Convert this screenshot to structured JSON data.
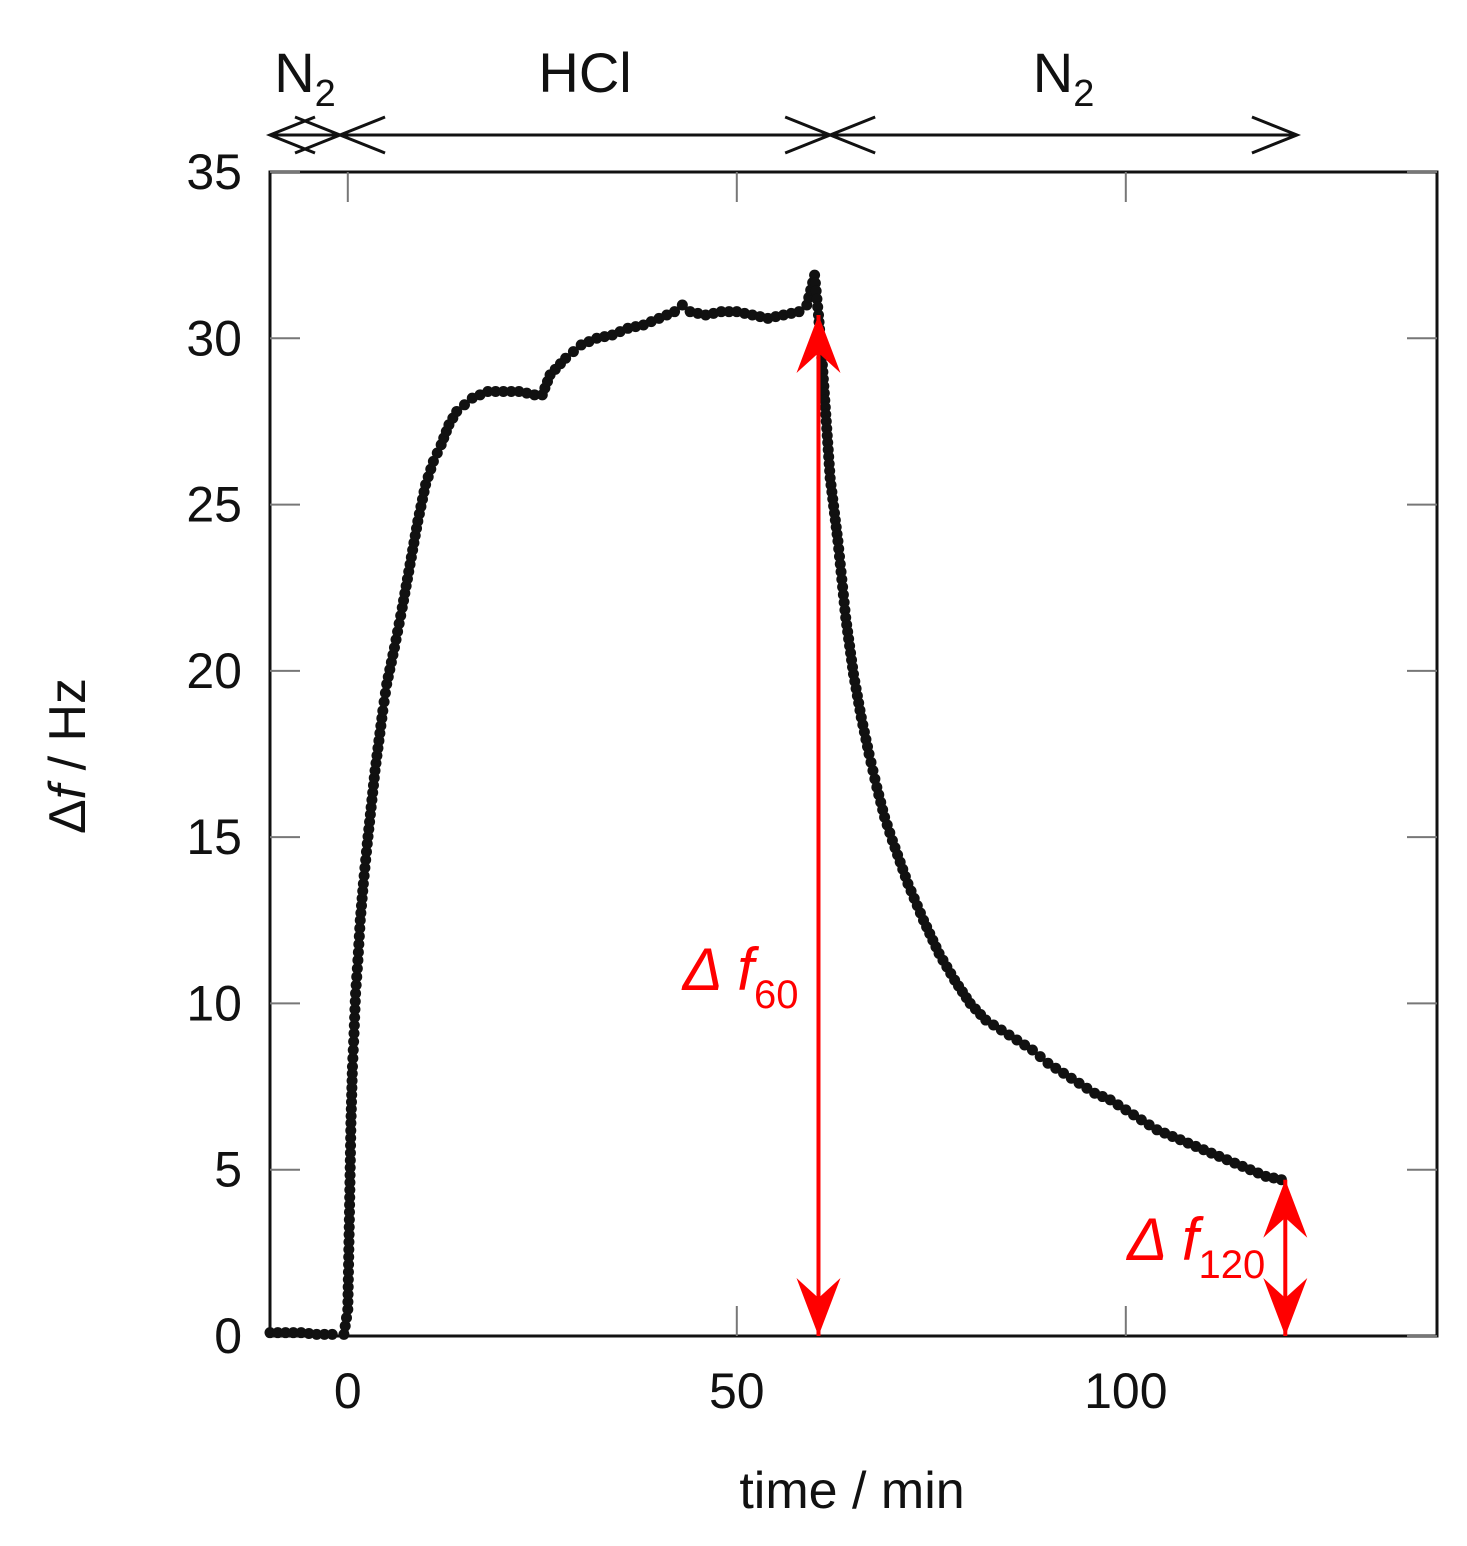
{
  "chart_data": {
    "type": "scatter",
    "title": "",
    "xlabel": "time / min",
    "ylabel_parts": {
      "delta": "Δ",
      "symbol": "f",
      "rest": " / Hz"
    },
    "xlim": [
      -10,
      140
    ],
    "ylim": [
      0,
      35
    ],
    "xticks": [
      0,
      50,
      100
    ],
    "yticks": [
      0,
      5,
      10,
      15,
      20,
      25,
      30,
      35
    ],
    "grid": false,
    "marker_color": "#111111",
    "annotation_color": "#ff0000",
    "phases": [
      {
        "label": "N",
        "sub": "2",
        "start": -10,
        "end": -1
      },
      {
        "label": "HCl",
        "sub": "",
        "start": -1,
        "end": 62
      },
      {
        "label": "N",
        "sub": "2",
        "start": 62,
        "end": 122
      }
    ],
    "annotations": [
      {
        "main": "Δ f",
        "sub": "60",
        "x": 60.5,
        "y_from": 0,
        "y_to": 30.7
      },
      {
        "main": "Δ f",
        "sub": "120",
        "x": 120.5,
        "y_from": 0,
        "y_to": 4.7
      }
    ],
    "series": [
      {
        "x": [
          -10,
          -8,
          -6,
          -4,
          -2,
          -0.5,
          0,
          0.2,
          0.4,
          0.6,
          0.8,
          1,
          1.3,
          1.6,
          2,
          2.5,
          3,
          3.5,
          4,
          4.5,
          5,
          6,
          7,
          8,
          9,
          10,
          11,
          12,
          13,
          14,
          15,
          16,
          18,
          20,
          22,
          24,
          25,
          26,
          28,
          30,
          32,
          34,
          36,
          38,
          40,
          42,
          43,
          44,
          46,
          48,
          50,
          52,
          54,
          56,
          58,
          59,
          60,
          60.5,
          61,
          61.5,
          62,
          63,
          64,
          65,
          66,
          67,
          68,
          69,
          70,
          72,
          74,
          76,
          78,
          80,
          82,
          84,
          86,
          88,
          90,
          92,
          94,
          96,
          98,
          100,
          102,
          104,
          106,
          108,
          110,
          112,
          114,
          116,
          118,
          120
        ],
        "y": [
          0.1,
          0.1,
          0.1,
          0.05,
          0.05,
          0.05,
          0.8,
          3.5,
          6.4,
          8.1,
          9.1,
          10.3,
          11.3,
          12.5,
          13.6,
          14.8,
          15.9,
          17.0,
          17.9,
          18.8,
          19.6,
          20.7,
          21.9,
          23.2,
          24.5,
          25.6,
          26.3,
          26.8,
          27.4,
          27.8,
          28.0,
          28.2,
          28.4,
          28.4,
          28.4,
          28.3,
          28.3,
          28.9,
          29.4,
          29.8,
          30.0,
          30.1,
          30.3,
          30.4,
          30.6,
          30.8,
          31.0,
          30.8,
          30.7,
          30.8,
          30.8,
          30.7,
          30.6,
          30.7,
          30.8,
          31.0,
          31.9,
          30.7,
          29.2,
          27.5,
          25.8,
          23.9,
          21.6,
          19.9,
          18.6,
          17.5,
          16.5,
          15.6,
          14.9,
          13.6,
          12.5,
          11.5,
          10.7,
          10.0,
          9.5,
          9.2,
          8.9,
          8.6,
          8.2,
          7.9,
          7.6,
          7.3,
          7.1,
          6.8,
          6.5,
          6.2,
          6.0,
          5.8,
          5.6,
          5.4,
          5.2,
          5.0,
          4.8,
          4.7
        ]
      }
    ]
  }
}
